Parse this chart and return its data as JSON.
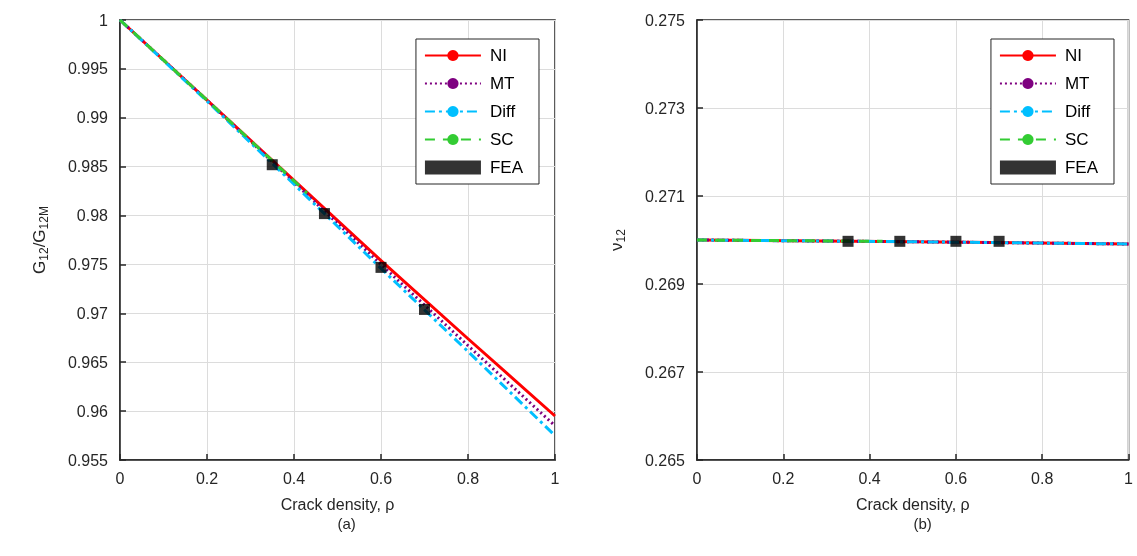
{
  "chart_data": [
    {
      "type": "line",
      "xlabel": "Crack density, ρ",
      "ylabel": "G$_{12}$/G$_{12M}$",
      "annotations": [
        "(a)"
      ],
      "xlim": [
        0,
        1
      ],
      "xticks": [
        0,
        0.2,
        0.4,
        0.6,
        0.8,
        1
      ],
      "ylim": [
        0.955,
        1
      ],
      "yticks": [
        0.955,
        0.96,
        0.965,
        0.97,
        0.975,
        0.98,
        0.985,
        0.99,
        0.995,
        1
      ],
      "grid": true,
      "legend": "top right",
      "series": [
        {
          "name": "NI",
          "color": "#ff0000",
          "line_style": "solid",
          "x": [
            0,
            0.2,
            0.4,
            0.6,
            0.8,
            1
          ],
          "values": [
            1,
            0.9918,
            0.9836,
            0.9754,
            0.9674,
            0.9595
          ]
        },
        {
          "name": "MT",
          "color": "#7e0080",
          "line_style": "dotted",
          "x": [
            0,
            0.2,
            0.4,
            0.6,
            0.8,
            1
          ],
          "values": [
            1,
            0.9918,
            0.9834,
            0.975,
            0.9667,
            0.9585
          ]
        },
        {
          "name": "Diff",
          "color": "#00bfff",
          "line_style": "dashdot",
          "x": [
            0,
            0.2,
            0.4,
            0.6,
            0.8,
            1
          ],
          "values": [
            1,
            0.9917,
            0.9832,
            0.9746,
            0.9661,
            0.9575
          ]
        },
        {
          "name": "SC",
          "color": "#33cc33",
          "line_style": "dashed",
          "x": [
            0,
            0.2,
            0.43
          ],
          "values": [
            1,
            0.9918,
            0.9823
          ]
        },
        {
          "name": "FEA",
          "type": "scatter",
          "marker": "square",
          "color": "#000000",
          "x": [
            0.35,
            0.47,
            0.6,
            0.7
          ],
          "values": [
            0.9852,
            0.9802,
            0.9747,
            0.9704
          ]
        }
      ]
    },
    {
      "type": "line",
      "xlabel": "Crack density, ρ",
      "ylabel": "ν$_{12}$",
      "annotations": [
        "(b)"
      ],
      "xlim": [
        0,
        1
      ],
      "xticks": [
        0,
        0.2,
        0.4,
        0.6,
        0.8,
        1
      ],
      "ylim": [
        0.265,
        0.275
      ],
      "yticks": [
        0.265,
        0.267,
        0.269,
        0.271,
        0.273,
        0.275
      ],
      "grid": true,
      "legend": "top right",
      "series": [
        {
          "name": "NI",
          "color": "#ff0000",
          "line_style": "solid",
          "x": [
            0,
            0.5,
            1
          ],
          "values": [
            0.27,
            0.26996,
            0.26991
          ]
        },
        {
          "name": "MT",
          "color": "#7e0080",
          "line_style": "dotted",
          "x": [
            0,
            0.5,
            1
          ],
          "values": [
            0.27,
            0.26996,
            0.26991
          ]
        },
        {
          "name": "Diff",
          "color": "#00bfff",
          "line_style": "dashdot",
          "x": [
            0,
            0.5,
            1
          ],
          "values": [
            0.27,
            0.26996,
            0.26991
          ]
        },
        {
          "name": "SC",
          "color": "#33cc33",
          "line_style": "dashed",
          "x": [
            0,
            0.43
          ],
          "values": [
            0.27,
            0.26997
          ]
        },
        {
          "name": "FEA",
          "type": "scatter",
          "marker": "square",
          "color": "#000000",
          "x": [
            0.35,
            0.47,
            0.6,
            0.7
          ],
          "values": [
            0.26997,
            0.26997,
            0.26997,
            0.26997
          ]
        }
      ]
    }
  ]
}
